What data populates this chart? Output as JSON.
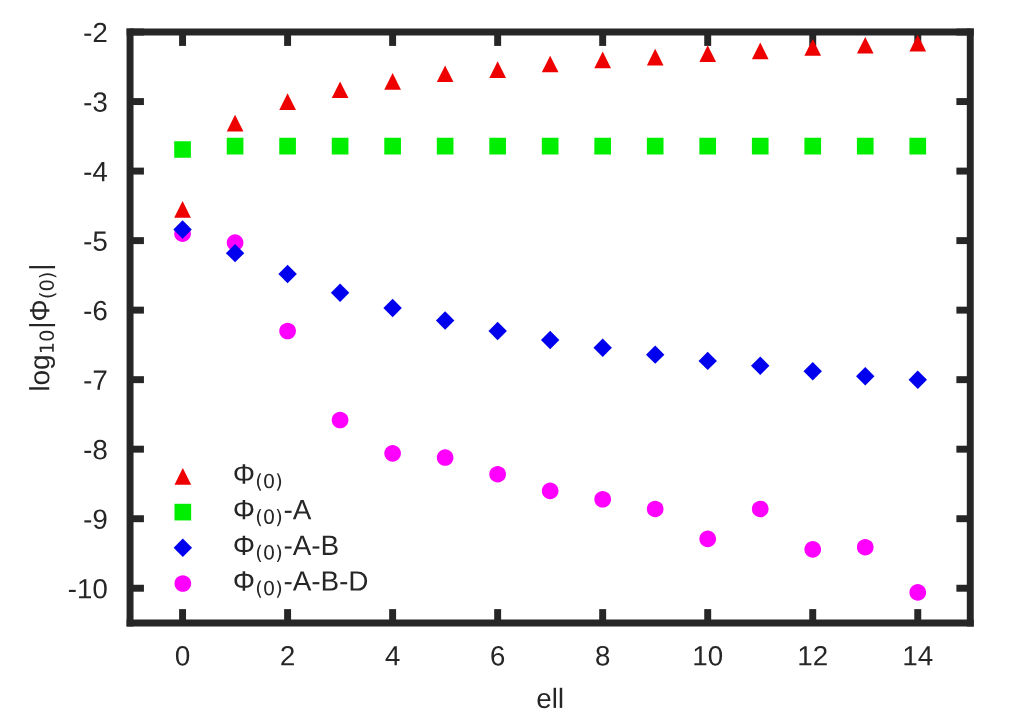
{
  "chart_data": {
    "type": "scatter",
    "xlabel": "ell",
    "ylabel": "log$_{10}$|Φ$_{(0)}$|",
    "x": [
      0,
      1,
      2,
      3,
      4,
      5,
      6,
      7,
      8,
      9,
      10,
      11,
      12,
      13,
      14
    ],
    "xlim": [
      -1,
      15
    ],
    "xticks": [
      0,
      2,
      4,
      6,
      8,
      10,
      12,
      14
    ],
    "ylim": [
      -10.5,
      -2
    ],
    "yticks": [
      -10,
      -9,
      -8,
      -7,
      -6,
      -5,
      -4,
      -3,
      -2
    ],
    "grid": false,
    "legend": "bottom left",
    "series": [
      {
        "name": "Φ$_{(0)}$",
        "color": "#ee0000",
        "marker": "triangle",
        "values": [
          -4.55,
          -3.31,
          -3.0,
          -2.83,
          -2.71,
          -2.6,
          -2.54,
          -2.46,
          -2.4,
          -2.36,
          -2.31,
          -2.27,
          -2.22,
          -2.19,
          -2.16
        ]
      },
      {
        "name": "Φ$_{(0)}$-A",
        "color": "#00ee00",
        "marker": "square",
        "values": [
          -3.69,
          -3.64,
          -3.64,
          -3.64,
          -3.64,
          -3.64,
          -3.64,
          -3.64,
          -3.64,
          -3.64,
          -3.64,
          -3.64,
          -3.64,
          -3.64,
          -3.64
        ]
      },
      {
        "name": "Φ$_{(0)}$-A-B",
        "color": "#0000ee",
        "marker": "diamond",
        "values": [
          -4.84,
          -5.18,
          -5.48,
          -5.75,
          -5.97,
          -6.15,
          -6.3,
          -6.43,
          -6.54,
          -6.64,
          -6.73,
          -6.8,
          -6.88,
          -6.95,
          -7.0
        ]
      },
      {
        "name": "Φ$_{(0)}$-A-B-D",
        "color": "#ff00ff",
        "marker": "circle",
        "values": [
          -4.9,
          -5.03,
          -6.3,
          -7.58,
          -8.06,
          -8.12,
          -8.36,
          -8.6,
          -8.72,
          -8.86,
          -9.29,
          -8.86,
          -9.44,
          -9.41,
          -10.06
        ]
      }
    ]
  }
}
